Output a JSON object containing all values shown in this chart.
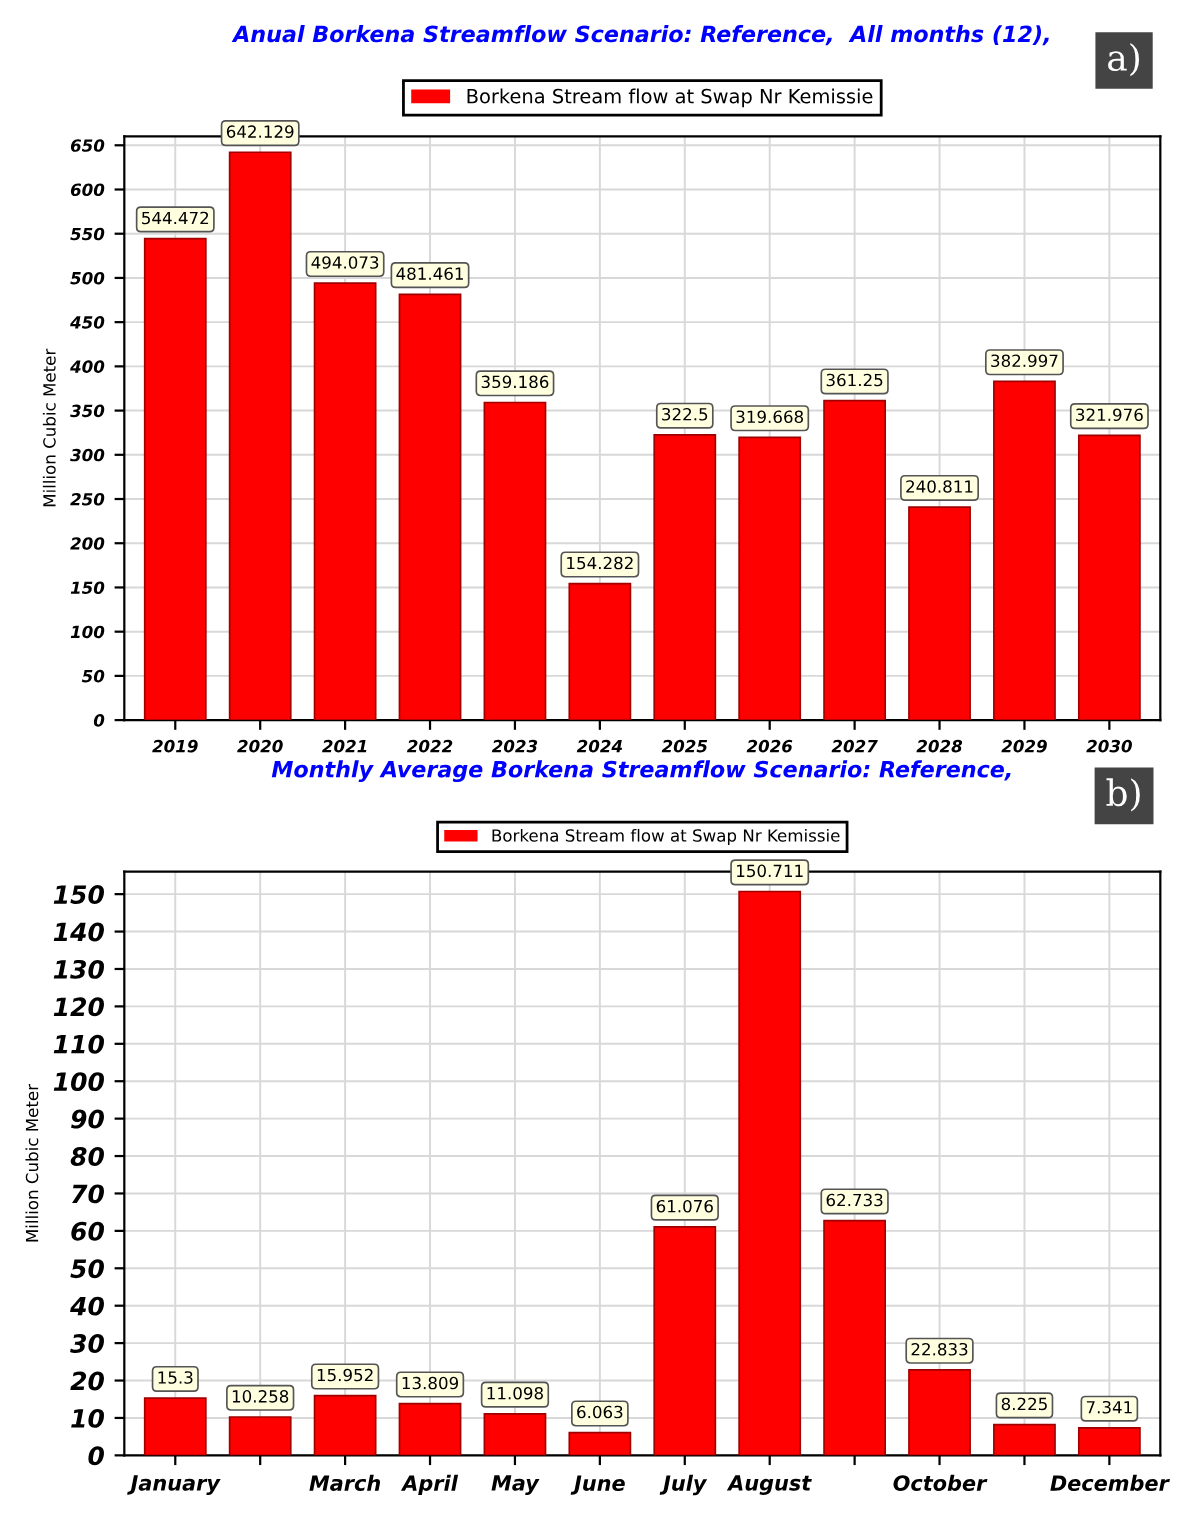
{
  "chart_data": [
    {
      "type": "bar",
      "title": "Anual Borkena Streamflow Scenario: Reference,  All months (12),",
      "ylabel": "Million Cubic Meter",
      "annotations": [
        "a)"
      ],
      "categories": [
        "2019",
        "2020",
        "2021",
        "2022",
        "2023",
        "2024",
        "2025",
        "2026",
        "2027",
        "2028",
        "2029",
        "2030"
      ],
      "series": [
        {
          "name": "Borkena Stream flow at Swap Nr Kemissie",
          "color": "#ff0000",
          "values": [
            544.472,
            642.129,
            494.073,
            481.461,
            359.186,
            154.282,
            322.5,
            319.668,
            361.25,
            240.811,
            382.997,
            321.976
          ]
        }
      ],
      "ylim": [
        0,
        660
      ],
      "yticks": [
        0,
        50,
        100,
        150,
        200,
        250,
        300,
        350,
        400,
        450,
        500,
        550,
        600,
        650
      ],
      "grid": true,
      "legend": "top",
      "data_labels": true
    },
    {
      "type": "bar",
      "title": "Monthly Average Borkena Streamflow Scenario: Reference,",
      "ylabel": "Million Cubic Meter",
      "annotations": [
        "b)"
      ],
      "categories": [
        "January",
        null,
        "March",
        "April",
        "May",
        "June",
        "July",
        "August",
        null,
        "October",
        null,
        "December"
      ],
      "series": [
        {
          "name": "Borkena Stream flow at Swap Nr Kemissie",
          "color": "#ff0000",
          "values": [
            15.3,
            10.258,
            15.952,
            13.809,
            11.098,
            6.063,
            61.076,
            150.711,
            62.733,
            22.833,
            8.225,
            7.341
          ]
        }
      ],
      "ylim": [
        0,
        156
      ],
      "yticks": [
        0,
        10,
        20,
        30,
        40,
        50,
        60,
        70,
        80,
        90,
        100,
        110,
        120,
        130,
        140,
        150
      ],
      "grid": true,
      "legend": "top",
      "data_labels": true
    }
  ]
}
